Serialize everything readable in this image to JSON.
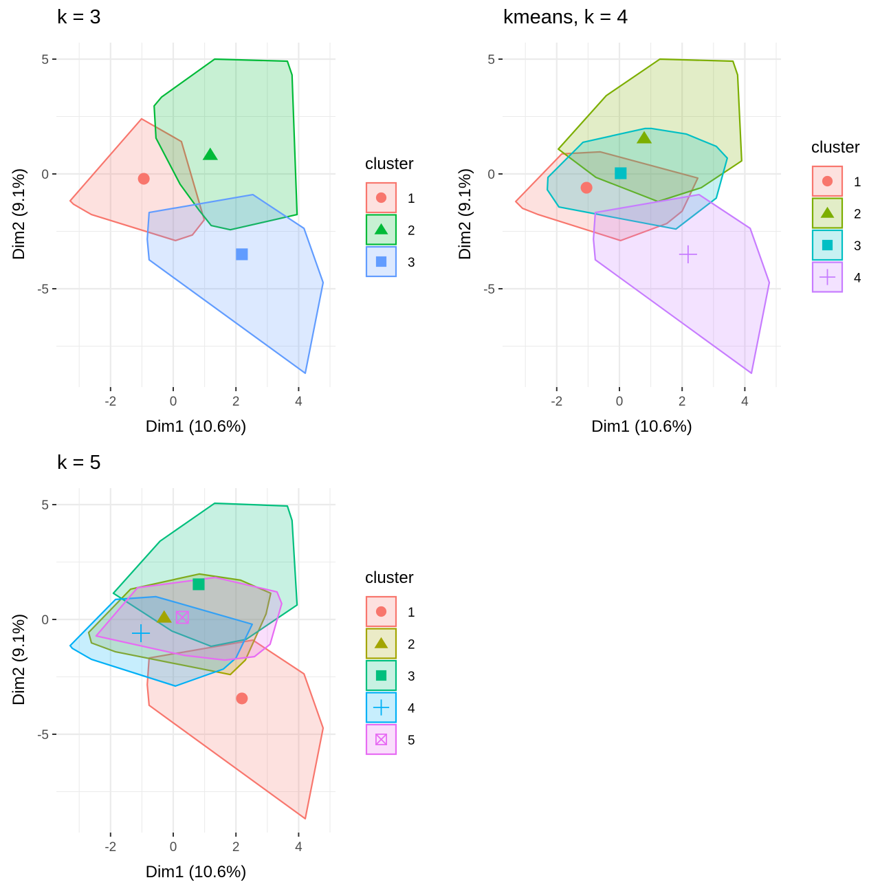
{
  "chart_data": [
    {
      "type": "scatter",
      "title": "k = 3",
      "xlabel": "Dim1 (10.6%)",
      "ylabel": "Dim2 (9.1%)",
      "xlim": [
        -3.73,
        5.18
      ],
      "ylim": [
        -9.3,
        5.7
      ],
      "xticks": [
        -2,
        0,
        2,
        4
      ],
      "yticks": [
        -5,
        0,
        5
      ],
      "grid": true,
      "legend": {
        "title": "cluster",
        "placement": "right"
      },
      "series": [
        {
          "name": "1",
          "color": "#F8766D",
          "shape": "circle",
          "center": [
            -0.94,
            -0.21
          ],
          "hull": [
            [
              -1.01,
              2.4
            ],
            [
              0.26,
              1.41
            ],
            [
              0.99,
              -2.0
            ],
            [
              0.61,
              -2.66
            ],
            [
              0.07,
              -2.9
            ],
            [
              -2.61,
              -1.77
            ],
            [
              -3.18,
              -1.32
            ],
            [
              -3.29,
              -1.17
            ]
          ]
        },
        {
          "name": "2",
          "color": "#00BA38",
          "shape": "triangle",
          "center": [
            1.18,
            0.84
          ],
          "hull": [
            [
              1.32,
              5.0
            ],
            [
              3.64,
              4.91
            ],
            [
              3.79,
              4.31
            ],
            [
              3.95,
              -1.77
            ],
            [
              1.82,
              -2.43
            ],
            [
              1.21,
              -2.25
            ],
            [
              0.83,
              -1.59
            ],
            [
              0.22,
              -0.45
            ],
            [
              -0.55,
              1.56
            ],
            [
              -0.61,
              2.96
            ],
            [
              -0.37,
              3.35
            ]
          ]
        },
        {
          "name": "3",
          "color": "#619CFF",
          "shape": "square",
          "center": [
            2.19,
            -3.5
          ],
          "hull": [
            [
              2.54,
              -0.9
            ],
            [
              4.17,
              -2.37
            ],
            [
              4.78,
              -4.73
            ],
            [
              4.21,
              -8.68
            ],
            [
              -0.77,
              -3.74
            ],
            [
              -0.83,
              -2.84
            ],
            [
              -0.77,
              -1.68
            ]
          ]
        }
      ]
    },
    {
      "type": "scatter",
      "title": "kmeans, k = 4",
      "xlabel": "Dim1 (10.6%)",
      "ylabel": "Dim2 (9.1%)",
      "xlim": [
        -3.73,
        5.18
      ],
      "ylim": [
        -9.3,
        5.7
      ],
      "xticks": [
        -2,
        0,
        2,
        4
      ],
      "yticks": [
        -5,
        0,
        5
      ],
      "grid": true,
      "legend": {
        "title": "cluster",
        "placement": "right"
      },
      "series": [
        {
          "name": "1",
          "color": "#F8766D",
          "shape": "circle",
          "center": [
            -1.05,
            -0.6
          ],
          "hull": [
            [
              -1.84,
              0.87
            ],
            [
              -0.61,
              0.96
            ],
            [
              2.5,
              -0.18
            ],
            [
              2.0,
              -1.62
            ],
            [
              1.51,
              -2.16
            ],
            [
              0.04,
              -2.9
            ],
            [
              -2.59,
              -1.77
            ],
            [
              -3.09,
              -1.5
            ],
            [
              -3.31,
              -1.2
            ]
          ]
        },
        {
          "name": "2",
          "color": "#7CAE00",
          "shape": "triangle",
          "center": [
            0.79,
            1.56
          ],
          "hull": [
            [
              1.29,
              5.0
            ],
            [
              3.62,
              4.91
            ],
            [
              3.77,
              4.31
            ],
            [
              3.9,
              0.57
            ],
            [
              2.61,
              -0.6
            ],
            [
              1.23,
              -1.2
            ],
            [
              -0.75,
              -0.15
            ],
            [
              -1.95,
              1.08
            ],
            [
              -0.42,
              3.41
            ]
          ]
        },
        {
          "name": "3",
          "color": "#00BFC4",
          "shape": "square",
          "center": [
            0.04,
            0.03
          ],
          "hull": [
            [
              0.81,
              1.98
            ],
            [
              1.03,
              1.98
            ],
            [
              2.13,
              1.74
            ],
            [
              3.09,
              1.2
            ],
            [
              3.44,
              0.69
            ],
            [
              3.09,
              -1.05
            ],
            [
              1.8,
              -2.4
            ],
            [
              -1.93,
              -1.44
            ],
            [
              -2.3,
              -0.69
            ],
            [
              -2.28,
              -0.15
            ],
            [
              -1.16,
              1.38
            ]
          ]
        },
        {
          "name": "4",
          "color": "#C77CFF",
          "shape": "plus",
          "center": [
            2.19,
            -3.5
          ],
          "hull": [
            [
              2.54,
              -0.9
            ],
            [
              4.17,
              -2.37
            ],
            [
              4.78,
              -4.73
            ],
            [
              4.21,
              -8.68
            ],
            [
              -0.77,
              -3.74
            ],
            [
              -0.83,
              -2.84
            ],
            [
              -0.77,
              -1.68
            ]
          ]
        }
      ]
    },
    {
      "type": "scatter",
      "title": "k = 5",
      "xlabel": "Dim1 (10.6%)",
      "ylabel": "Dim2 (9.1%)",
      "xlim": [
        -3.73,
        5.18
      ],
      "ylim": [
        -9.3,
        5.7
      ],
      "xticks": [
        -2,
        0,
        2,
        4
      ],
      "yticks": [
        -5,
        0,
        5
      ],
      "grid": true,
      "legend": {
        "title": "cluster",
        "placement": "right"
      },
      "series": [
        {
          "name": "1",
          "color": "#F8766D",
          "shape": "circle",
          "center": [
            2.19,
            -3.44
          ],
          "hull": [
            [
              2.54,
              -0.9
            ],
            [
              4.17,
              -2.37
            ],
            [
              4.78,
              -4.73
            ],
            [
              4.21,
              -8.68
            ],
            [
              -0.77,
              -3.74
            ],
            [
              -0.83,
              -2.84
            ],
            [
              -0.77,
              -1.68
            ]
          ]
        },
        {
          "name": "2",
          "color": "#A3A500",
          "shape": "triangle",
          "center": [
            -0.29,
            0.09
          ],
          "hull": [
            [
              0.83,
              1.98
            ],
            [
              2.15,
              1.71
            ],
            [
              3.11,
              1.14
            ],
            [
              2.96,
              0.24
            ],
            [
              2.3,
              -1.77
            ],
            [
              1.82,
              -2.4
            ],
            [
              -1.84,
              -1.41
            ],
            [
              -2.61,
              -1.02
            ],
            [
              -2.7,
              -0.57
            ],
            [
              -1.36,
              1.32
            ]
          ]
        },
        {
          "name": "3",
          "color": "#00BF7D",
          "shape": "square",
          "center": [
            0.81,
            1.53
          ],
          "hull": [
            [
              1.32,
              5.06
            ],
            [
              3.64,
              4.94
            ],
            [
              3.79,
              4.31
            ],
            [
              3.95,
              0.63
            ],
            [
              2.32,
              -0.87
            ],
            [
              1.21,
              -1.17
            ],
            [
              -0.04,
              -0.51
            ],
            [
              -1.91,
              1.14
            ],
            [
              -0.42,
              3.41
            ]
          ]
        },
        {
          "name": "4",
          "color": "#00B0F6",
          "shape": "plus",
          "center": [
            -1.03,
            -0.6
          ],
          "hull": [
            [
              -1.84,
              0.87
            ],
            [
              -0.55,
              0.99
            ],
            [
              2.52,
              -0.21
            ],
            [
              2.0,
              -1.68
            ],
            [
              1.6,
              -2.16
            ],
            [
              0.07,
              -2.9
            ],
            [
              -2.61,
              -1.74
            ],
            [
              -3.22,
              -1.26
            ],
            [
              -3.29,
              -1.14
            ]
          ]
        },
        {
          "name": "5",
          "color": "#E76BF3",
          "shape": "boxcross",
          "center": [
            0.29,
            0.09
          ],
          "hull": [
            [
              -1.14,
              1.38
            ],
            [
              1.34,
              1.83
            ],
            [
              3.31,
              1.2
            ],
            [
              3.46,
              0.69
            ],
            [
              3.09,
              -1.08
            ],
            [
              2.59,
              -1.62
            ],
            [
              1.64,
              -1.77
            ],
            [
              0.33,
              -1.56
            ],
            [
              -2.46,
              -0.72
            ]
          ]
        }
      ]
    }
  ]
}
